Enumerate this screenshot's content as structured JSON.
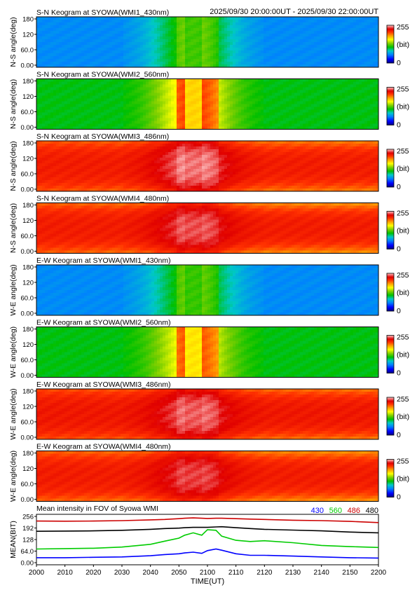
{
  "header": {
    "time_range": "2025/09/30 20:00:00UT - 2025/09/30 22:00:00UT"
  },
  "colors": {
    "colorbar": [
      "#000080",
      "#0000ff",
      "#0080ff",
      "#00c8c8",
      "#00c000",
      "#80d000",
      "#ffff00",
      "#ffa000",
      "#ff3000",
      "#e00000",
      "#ffc8c8"
    ],
    "lines": {
      "430": "#0000ff",
      "560": "#00cc00",
      "486": "#cc0000",
      "480": "#000000"
    }
  },
  "keograms": [
    {
      "title": "S-N Keogram at SYOWA(WMI1_430nm)",
      "ylabel": "N-S angle(deg)",
      "yticks": [
        "180",
        "120",
        "60.0",
        "0.00"
      ],
      "colorbar": {
        "max": "255",
        "unit": "(bit)",
        "min": "0"
      },
      "base": 60,
      "peak": [
        120,
        95
      ],
      "edge_drop": 0
    },
    {
      "title": "S-N Keogram at SYOWA(WMI2_560nm)",
      "ylabel": "N-S angle(deg)",
      "yticks": [
        "180",
        "120",
        "60.0",
        "0.00"
      ],
      "colorbar": {
        "max": "255",
        "unit": "(bit)",
        "min": "0"
      },
      "base": 105,
      "peak": [
        170,
        215
      ],
      "edge_drop": 0
    },
    {
      "title": "S-N Keogram at SYOWA(WMI3_486nm)",
      "ylabel": "N-S angle(deg)",
      "yticks": [
        "180",
        "120",
        "60.0",
        "0.00"
      ],
      "colorbar": {
        "max": "255",
        "unit": "(bit)",
        "min": "0"
      },
      "base": 218,
      "peak": [
        245,
        232
      ],
      "edge_drop": 25
    },
    {
      "title": "S-N Keogram at SYOWA(WMI4_480nm)",
      "ylabel": "N-S angle(deg)",
      "yticks": [
        "180",
        "120",
        "60.0",
        "0.00"
      ],
      "colorbar": {
        "max": "255",
        "unit": "(bit)",
        "min": "0"
      },
      "base": 218,
      "peak": [
        240,
        228
      ],
      "edge_drop": 30
    },
    {
      "title": "E-W Keogram at SYOWA(WMI1_430nm)",
      "ylabel": "W-E angle(deg)",
      "yticks": [
        "180",
        "120",
        "60.0",
        "0.00"
      ],
      "colorbar": {
        "max": "255",
        "unit": "(bit)",
        "min": "0"
      },
      "base": 60,
      "peak": [
        118,
        95
      ],
      "edge_drop": 0
    },
    {
      "title": "E-W Keogram at SYOWA(WMI2_560nm)",
      "ylabel": "W-E angle(deg)",
      "yticks": [
        "180",
        "120",
        "60.0",
        "0.00"
      ],
      "colorbar": {
        "max": "255",
        "unit": "(bit)",
        "min": "0"
      },
      "base": 105,
      "peak": [
        165,
        215
      ],
      "edge_drop": 0
    },
    {
      "title": "E-W Keogram at SYOWA(WMI3_486nm)",
      "ylabel": "W-E angle(deg)",
      "yticks": [
        "180",
        "120",
        "60.0",
        "0.00"
      ],
      "colorbar": {
        "max": "255",
        "unit": "(bit)",
        "min": "0"
      },
      "base": 220,
      "peak": [
        242,
        232
      ],
      "edge_drop": 25
    },
    {
      "title": "E-W Keogram at SYOWA(WMI4_480nm)",
      "ylabel": "W-E angle(deg)",
      "yticks": [
        "180",
        "120",
        "60.0",
        "0.00"
      ],
      "colorbar": {
        "max": "255",
        "unit": "(bit)",
        "min": "0"
      },
      "base": 218,
      "peak": [
        238,
        226
      ],
      "edge_drop": 30
    }
  ],
  "chart_data": {
    "type": "line",
    "title": "Mean intensity in FOV of Syowa WMI",
    "xlabel": "TIME(UT)",
    "ylabel": "MEAN(BIT)",
    "x_ticks": [
      "2000",
      "2010",
      "2020",
      "2030",
      "2040",
      "2050",
      "2100",
      "2110",
      "2120",
      "2130",
      "2140",
      "2150",
      "2200"
    ],
    "y_ticks": [
      "256",
      "192",
      "128",
      "64.0",
      "0.00"
    ],
    "ylim": [
      0,
      256
    ],
    "legend": [
      {
        "name": "430",
        "color": "#0000ff"
      },
      {
        "name": "560",
        "color": "#00cc00"
      },
      {
        "name": "486",
        "color": "#cc0000"
      },
      {
        "name": "480",
        "color": "#000000"
      }
    ],
    "x_minutes": [
      0,
      10,
      20,
      30,
      40,
      45,
      50,
      52,
      55,
      58,
      60,
      63,
      65,
      70,
      75,
      80,
      90,
      100,
      110,
      120
    ],
    "series": [
      {
        "name": "486",
        "color": "#cc0000",
        "values": [
          222,
          221,
          222,
          224,
          228,
          230,
          234,
          236,
          238,
          236,
          235,
          236,
          236,
          234,
          232,
          230,
          226,
          224,
          220,
          214
        ]
      },
      {
        "name": "480",
        "color": "#000000",
        "values": [
          170,
          171,
          172,
          175,
          180,
          184,
          186,
          188,
          190,
          190,
          190,
          192,
          193,
          188,
          184,
          180,
          176,
          172,
          166,
          162
        ]
      },
      {
        "name": "560",
        "color": "#00cc00",
        "values": [
          80,
          82,
          84,
          90,
          104,
          120,
          135,
          150,
          162,
          150,
          178,
          175,
          145,
          124,
          118,
          122,
          112,
          98,
          92,
          88
        ]
      },
      {
        "name": "430",
        "color": "#0000ff",
        "values": [
          36,
          36,
          38,
          40,
          46,
          52,
          56,
          60,
          64,
          58,
          72,
          80,
          74,
          56,
          48,
          48,
          44,
          40,
          36,
          34
        ]
      }
    ]
  }
}
